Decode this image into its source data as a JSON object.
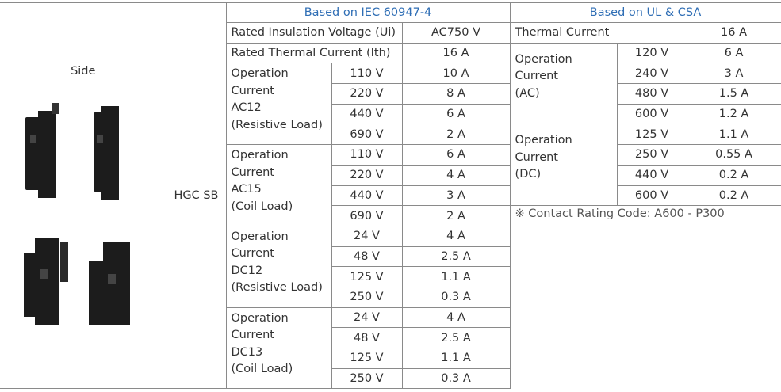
{
  "side_label": "Side",
  "model": "HGC SB",
  "iec": {
    "header": "Based on IEC 60947-4",
    "rows": [
      [
        "Rated Insulation Voltage (Ui)",
        "AC750 V"
      ],
      [
        "Rated Thermal Current (Ith)",
        "16 A"
      ]
    ],
    "groups": [
      {
        "label": "Operation\nCurrent\nAC12\n(Resistive Load)",
        "rows": [
          [
            "110 V",
            "10 A"
          ],
          [
            "220 V",
            "8 A"
          ],
          [
            "440 V",
            "6 A"
          ],
          [
            "690 V",
            "2 A"
          ]
        ]
      },
      {
        "label": "Operation\nCurrent\nAC15\n(Coil Load)",
        "rows": [
          [
            "110 V",
            "6 A"
          ],
          [
            "220 V",
            "4 A"
          ],
          [
            "440 V",
            "3 A"
          ],
          [
            "690 V",
            "2 A"
          ]
        ]
      },
      {
        "label": "Operation\nCurrent\nDC12\n(Resistive Load)",
        "rows": [
          [
            "24 V",
            "4 A"
          ],
          [
            "48 V",
            "2.5 A"
          ],
          [
            "125 V",
            "1.1 A"
          ],
          [
            "250 V",
            "0.3 A"
          ]
        ]
      },
      {
        "label": "Operation\nCurrent\nDC13\n(Coil Load)",
        "rows": [
          [
            "24 V",
            "4 A"
          ],
          [
            "48 V",
            "2.5 A"
          ],
          [
            "125 V",
            "1.1 A"
          ],
          [
            "250 V",
            "0.3 A"
          ]
        ]
      }
    ]
  },
  "ul": {
    "header": "Based on UL & CSA",
    "thermal": [
      "Thermal Current",
      "16 A"
    ],
    "groups": [
      {
        "label": "Operation\nCurrent\n(AC)",
        "rows": [
          [
            "120 V",
            "6 A"
          ],
          [
            "240 V",
            "3 A"
          ],
          [
            "480 V",
            "1.5 A"
          ],
          [
            "600 V",
            "1.2 A"
          ]
        ]
      },
      {
        "label": "Operation\nCurrent\n(DC)",
        "rows": [
          [
            "125 V",
            "1.1 A"
          ],
          [
            "250 V",
            "0.55 A"
          ],
          [
            "440 V",
            "0.2 A"
          ],
          [
            "600 V",
            "0.2 A"
          ]
        ]
      }
    ],
    "note": "※ Contact Rating Code: A600 - P300"
  }
}
